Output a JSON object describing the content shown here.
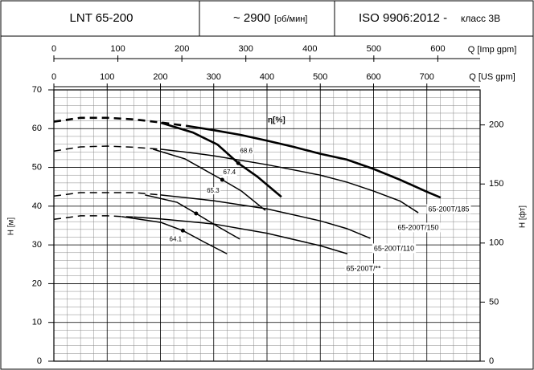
{
  "header": {
    "model": "LNT 65-200",
    "speed": "~ 2900",
    "speed_unit": "[об/мин]",
    "standard": "ISO 9906:2012 -",
    "class": "класс 3В"
  },
  "chart_data": {
    "type": "line",
    "y_label": "H [м]",
    "y2_label": "H [фт]",
    "x_label": "Q [US gpm]",
    "x2_label": "Q [Imp gpm]",
    "efficiency_label": "η[%]",
    "xlim": [
      0,
      800
    ],
    "xticks": [
      0,
      100,
      200,
      300,
      400,
      500,
      600,
      700
    ],
    "x2lim": [
      0,
      666.1
    ],
    "x2ticks": [
      0,
      100,
      200,
      300,
      400,
      500,
      600
    ],
    "ylim": [
      0,
      70
    ],
    "yticks": [
      0,
      10,
      20,
      30,
      40,
      50,
      60,
      70
    ],
    "y2lim": [
      0,
      229.66
    ],
    "y2ticks": [
      0,
      50,
      100,
      150,
      200
    ],
    "grid": true,
    "minor_grid": {
      "x_step": 25,
      "y_step": 2
    },
    "series": [
      {
        "name": "65-200T/185",
        "color": "#000000",
        "line_width": 2.6,
        "dashed_count": 6,
        "x": [
          0,
          50,
          100,
          150,
          200,
          250,
          300,
          350,
          400,
          450,
          500,
          550,
          600,
          650,
          700,
          726
        ],
        "values": [
          61.8,
          62.8,
          62.8,
          62.4,
          61.6,
          60.7,
          59.6,
          58.4,
          56.9,
          55.3,
          53.5,
          52.0,
          49.6,
          46.8,
          43.7,
          42.2
        ]
      },
      {
        "name": "65-200T/150",
        "color": "#000000",
        "line_width": 1.5,
        "dashed_count": 5,
        "x": [
          0,
          50,
          100,
          150,
          200,
          250,
          300,
          400,
          500,
          550,
          600,
          650,
          684
        ],
        "values": [
          54.2,
          55.3,
          55.5,
          55.2,
          54.7,
          53.9,
          53.0,
          50.7,
          48.0,
          46.2,
          43.9,
          41.3,
          38.3
        ]
      },
      {
        "name": "65-200T/110",
        "color": "#000000",
        "line_width": 1.5,
        "dashed_count": 5,
        "x": [
          0,
          50,
          100,
          150,
          200,
          300,
          400,
          500,
          550,
          594
        ],
        "values": [
          42.6,
          43.5,
          43.5,
          43.5,
          42.9,
          41.4,
          39.3,
          36.2,
          34.2,
          31.7
        ]
      },
      {
        "name": "65-200T/**",
        "color": "#000000",
        "line_width": 1.5,
        "dashed_count": 4,
        "x": [
          0,
          50,
          100,
          150,
          200,
          300,
          400,
          500,
          551
        ],
        "values": [
          36.6,
          37.5,
          37.5,
          37.2,
          36.7,
          35.4,
          33.0,
          29.8,
          27.7
        ]
      },
      {
        "color": "#000000",
        "line_width": 2.6,
        "x": [
          201,
          261,
          307,
          346,
          382,
          427
        ],
        "values": [
          61.5,
          59.0,
          55.9,
          51.1,
          47.6,
          42.4
        ]
      },
      {
        "color": "#000000",
        "line_width": 1.5,
        "x": [
          186,
          246,
          316,
          352,
          397
        ],
        "values": [
          54.7,
          52.2,
          46.8,
          43.9,
          38.9
        ]
      },
      {
        "color": "#000000",
        "line_width": 1.5,
        "x": [
          171,
          231,
          267,
          307,
          349
        ],
        "values": [
          42.9,
          41.0,
          38.1,
          34.8,
          31.5
        ]
      },
      {
        "color": "#000000",
        "line_width": 1.5,
        "x": [
          127,
          201,
          242,
          284,
          325
        ],
        "values": [
          37.3,
          35.8,
          33.7,
          30.6,
          27.7
        ]
      }
    ],
    "efficiency_points": [
      {
        "x": 346,
        "y": 51.1,
        "label": 68.6
      },
      {
        "x": 316,
        "y": 46.8,
        "label": 67.4
      },
      {
        "x": 267,
        "y": 38.1,
        "label": 65.3
      },
      {
        "x": 242,
        "y": 33.7,
        "label": 64.1
      }
    ]
  }
}
